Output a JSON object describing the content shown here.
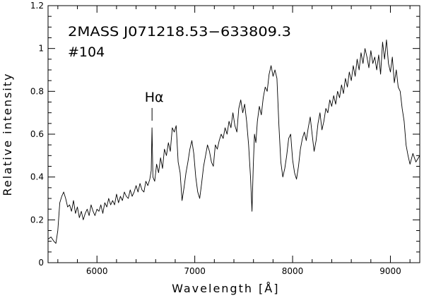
{
  "chart_data": {
    "type": "line",
    "title": "2MASS J071218.53−633809.3",
    "subtitle": "#104",
    "xlabel": "Wavelength",
    "xlabel_unit": "[Å]",
    "ylabel": "Relative intensity",
    "xlim": [
      5500,
      9300
    ],
    "ylim": [
      0,
      1.2
    ],
    "x_ticks_major": [
      6000,
      7000,
      8000,
      9000
    ],
    "x_tick_labels": [
      "6000",
      "7000",
      "8000",
      "9000"
    ],
    "x_ticks_minor_step": 200,
    "y_ticks_major": [
      0,
      0.2,
      0.4,
      0.6,
      0.8,
      1,
      1.2
    ],
    "y_tick_labels": [
      "0",
      "0.2",
      "0.4",
      "0.6",
      "0.8",
      "1",
      "1.2"
    ],
    "y_ticks_minor_step": 0.05,
    "grid": false,
    "annotations": [
      {
        "text": "Hα",
        "x": 6563,
        "y": 0.63
      }
    ],
    "series": [
      {
        "name": "spectrum",
        "x": [
          5500,
          5530,
          5560,
          5580,
          5600,
          5620,
          5640,
          5660,
          5680,
          5700,
          5720,
          5740,
          5760,
          5780,
          5800,
          5820,
          5840,
          5860,
          5880,
          5900,
          5920,
          5940,
          5960,
          5980,
          6000,
          6020,
          6040,
          6060,
          6080,
          6100,
          6120,
          6140,
          6160,
          6180,
          6200,
          6220,
          6240,
          6260,
          6280,
          6300,
          6320,
          6340,
          6360,
          6380,
          6400,
          6420,
          6440,
          6460,
          6480,
          6500,
          6520,
          6540,
          6555,
          6563,
          6572,
          6590,
          6610,
          6630,
          6650,
          6670,
          6690,
          6710,
          6730,
          6750,
          6770,
          6790,
          6810,
          6830,
          6850,
          6870,
          6890,
          6910,
          6930,
          6950,
          6970,
          6990,
          7010,
          7030,
          7050,
          7070,
          7090,
          7110,
          7130,
          7150,
          7170,
          7190,
          7210,
          7230,
          7250,
          7270,
          7290,
          7310,
          7330,
          7350,
          7370,
          7390,
          7410,
          7430,
          7450,
          7470,
          7490,
          7510,
          7530,
          7550,
          7570,
          7585,
          7598,
          7610,
          7625,
          7640,
          7660,
          7680,
          7700,
          7720,
          7740,
          7760,
          7780,
          7800,
          7820,
          7840,
          7860,
          7880,
          7900,
          7920,
          7940,
          7960,
          7980,
          8000,
          8020,
          8040,
          8060,
          8080,
          8100,
          8120,
          8140,
          8160,
          8180,
          8200,
          8220,
          8240,
          8260,
          8280,
          8300,
          8320,
          8340,
          8360,
          8380,
          8400,
          8420,
          8440,
          8460,
          8480,
          8500,
          8520,
          8540,
          8560,
          8580,
          8600,
          8620,
          8640,
          8660,
          8680,
          8700,
          8720,
          8740,
          8760,
          8780,
          8800,
          8820,
          8840,
          8860,
          8880,
          8900,
          8920,
          8940,
          8960,
          8980,
          9000,
          9020,
          9040,
          9060,
          9080,
          9100,
          9120,
          9140,
          9160,
          9180,
          9200,
          9230,
          9260,
          9300
        ],
        "values": [
          0.11,
          0.12,
          0.1,
          0.09,
          0.15,
          0.28,
          0.31,
          0.33,
          0.3,
          0.26,
          0.27,
          0.24,
          0.29,
          0.23,
          0.26,
          0.21,
          0.24,
          0.2,
          0.23,
          0.25,
          0.22,
          0.27,
          0.24,
          0.22,
          0.25,
          0.24,
          0.27,
          0.23,
          0.28,
          0.26,
          0.3,
          0.27,
          0.29,
          0.27,
          0.32,
          0.28,
          0.31,
          0.29,
          0.33,
          0.31,
          0.3,
          0.34,
          0.31,
          0.33,
          0.36,
          0.33,
          0.37,
          0.34,
          0.33,
          0.38,
          0.36,
          0.39,
          0.43,
          0.63,
          0.4,
          0.38,
          0.46,
          0.42,
          0.49,
          0.44,
          0.53,
          0.5,
          0.56,
          0.52,
          0.63,
          0.61,
          0.64,
          0.47,
          0.42,
          0.29,
          0.35,
          0.42,
          0.47,
          0.53,
          0.57,
          0.51,
          0.4,
          0.33,
          0.3,
          0.37,
          0.45,
          0.5,
          0.55,
          0.52,
          0.47,
          0.45,
          0.55,
          0.53,
          0.57,
          0.6,
          0.58,
          0.63,
          0.6,
          0.66,
          0.63,
          0.7,
          0.64,
          0.61,
          0.72,
          0.76,
          0.7,
          0.74,
          0.66,
          0.55,
          0.4,
          0.24,
          0.45,
          0.6,
          0.56,
          0.66,
          0.73,
          0.69,
          0.77,
          0.82,
          0.8,
          0.88,
          0.92,
          0.87,
          0.9,
          0.86,
          0.64,
          0.47,
          0.4,
          0.44,
          0.5,
          0.58,
          0.6,
          0.48,
          0.42,
          0.39,
          0.45,
          0.53,
          0.58,
          0.61,
          0.57,
          0.63,
          0.68,
          0.6,
          0.52,
          0.57,
          0.65,
          0.7,
          0.62,
          0.66,
          0.72,
          0.7,
          0.76,
          0.73,
          0.78,
          0.74,
          0.8,
          0.77,
          0.83,
          0.79,
          0.86,
          0.82,
          0.89,
          0.85,
          0.92,
          0.87,
          0.95,
          0.9,
          0.98,
          0.93,
          1.0,
          0.96,
          0.91,
          0.99,
          0.93,
          0.96,
          0.9,
          0.97,
          0.88,
          1.03,
          0.95,
          1.04,
          0.93,
          0.89,
          0.96,
          0.84,
          0.9,
          0.82,
          0.8,
          0.72,
          0.66,
          0.55,
          0.5,
          0.46,
          0.51,
          0.47,
          0.5
        ]
      }
    ]
  }
}
